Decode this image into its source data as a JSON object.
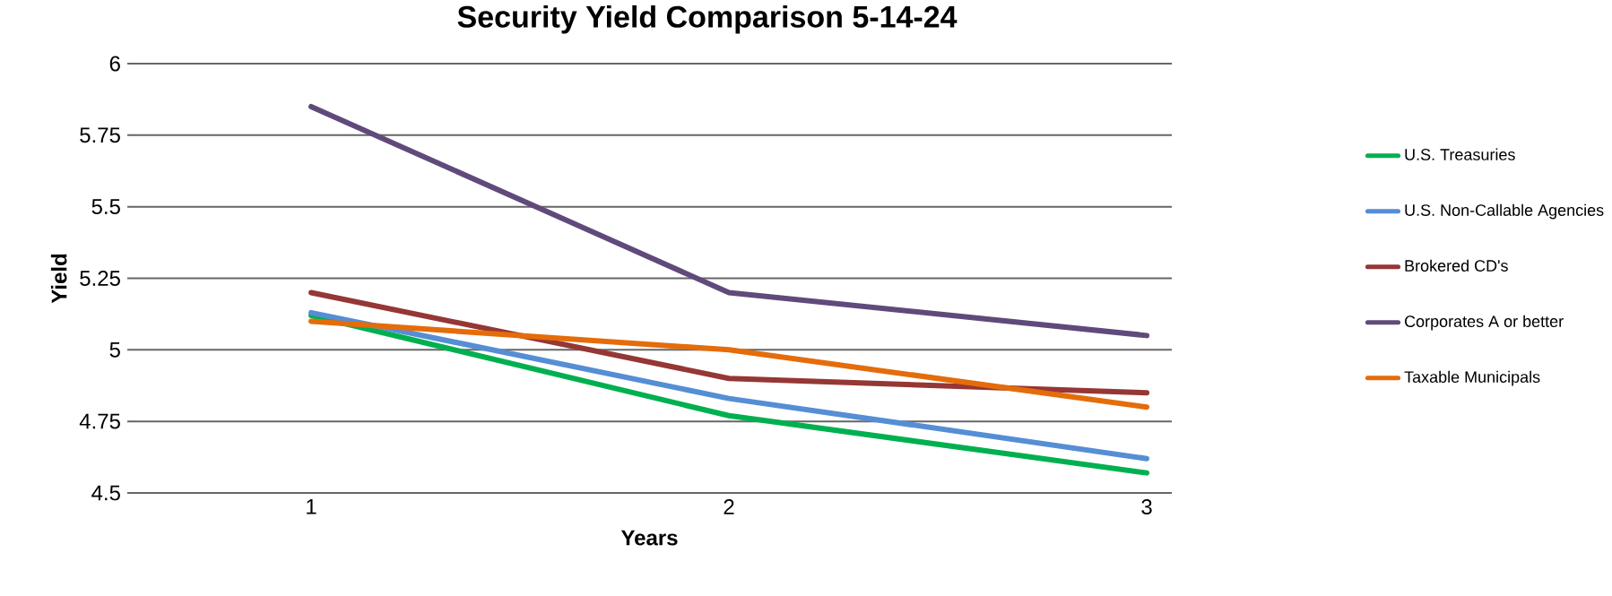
{
  "chart_data": {
    "type": "line",
    "title": "Security Yield Comparison 5-14-24",
    "xlabel": "Years",
    "ylabel": "Yield",
    "categories": [
      "1",
      "2",
      "3"
    ],
    "series": [
      {
        "name": "U.S. Treasuries",
        "color": "#00b050",
        "values": [
          5.12,
          4.77,
          4.57
        ]
      },
      {
        "name": "U.S. Non-Callable Agencies",
        "color": "#558ed5",
        "values": [
          5.13,
          4.83,
          4.62
        ]
      },
      {
        "name": "Brokered CD's",
        "color": "#953735",
        "values": [
          5.2,
          4.9,
          4.85
        ]
      },
      {
        "name": "Corporates A or better",
        "color": "#604a7b",
        "values": [
          5.85,
          5.2,
          5.05
        ]
      },
      {
        "name": "Taxable Municipals",
        "color": "#e46c0a",
        "values": [
          5.1,
          5.0,
          4.8
        ]
      }
    ],
    "ylim": [
      4.5,
      6
    ],
    "yticks": [
      4.5,
      4.75,
      5,
      5.25,
      5.5,
      5.75,
      6
    ],
    "grid": "y",
    "legend": "right",
    "marker": "none",
    "line_style": "solid"
  }
}
